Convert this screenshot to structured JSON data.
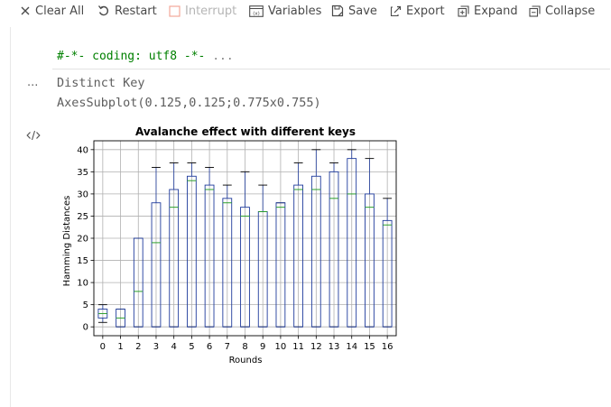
{
  "toolbar": {
    "items": [
      {
        "label": "Clear All",
        "icon": "close-icon"
      },
      {
        "label": "Restart",
        "icon": "restart-icon"
      },
      {
        "label": "Interrupt",
        "icon": "stop-icon",
        "disabled": true
      },
      {
        "label": "Variables",
        "icon": "variables-icon"
      },
      {
        "label": "Save",
        "icon": "save-icon"
      },
      {
        "label": "Export",
        "icon": "export-icon"
      },
      {
        "label": "Expand",
        "icon": "expand-icon"
      },
      {
        "label": "Collapse",
        "icon": "collapse-icon"
      }
    ]
  },
  "cell": {
    "code": "#-*- coding: utf8 -*-",
    "ellipsis": "...",
    "output_marker": "...",
    "output_lines": [
      "Distinct Key",
      "AxesSubplot(0.125,0.125;0.775x0.755)"
    ]
  },
  "colors": {
    "box": "#1f3b9c",
    "median": "#2ca02c",
    "whisker": "#000000",
    "grid": "#b0b0b0",
    "code_green": "#008000"
  },
  "chart_data": {
    "type": "box",
    "title": "Avalanche effect with different keys",
    "xlabel": "Rounds",
    "ylabel": "Hamming Distances",
    "categories": [
      "0",
      "1",
      "2",
      "3",
      "4",
      "5",
      "6",
      "7",
      "8",
      "9",
      "10",
      "11",
      "12",
      "13",
      "14",
      "15",
      "16"
    ],
    "ylim": [
      -2,
      42
    ],
    "yticks": [
      0,
      5,
      10,
      15,
      20,
      25,
      30,
      35,
      40
    ],
    "grid": true,
    "boxes": [
      {
        "whisker_low": 1,
        "q1": 2,
        "median": 3,
        "q3": 4,
        "whisker_high": 5
      },
      {
        "whisker_low": 0,
        "q1": 0,
        "median": 2,
        "q3": 4,
        "whisker_high": 4
      },
      {
        "whisker_low": 0,
        "q1": 0,
        "median": 8,
        "q3": 20,
        "whisker_high": 20
      },
      {
        "whisker_low": 0,
        "q1": 0,
        "median": 19,
        "q3": 28,
        "whisker_high": 36
      },
      {
        "whisker_low": 0,
        "q1": 0,
        "median": 27,
        "q3": 31,
        "whisker_high": 37
      },
      {
        "whisker_low": 0,
        "q1": 0,
        "median": 33,
        "q3": 34,
        "whisker_high": 37
      },
      {
        "whisker_low": 0,
        "q1": 0,
        "median": 31,
        "q3": 32,
        "whisker_high": 36
      },
      {
        "whisker_low": 0,
        "q1": 0,
        "median": 28,
        "q3": 29,
        "whisker_high": 32
      },
      {
        "whisker_low": 0,
        "q1": 0,
        "median": 25,
        "q3": 27,
        "whisker_high": 35
      },
      {
        "whisker_low": 0,
        "q1": 0,
        "median": 26,
        "q3": 26,
        "whisker_high": 32
      },
      {
        "whisker_low": 0,
        "q1": 0,
        "median": 27,
        "q3": 28,
        "whisker_high": 28
      },
      {
        "whisker_low": 0,
        "q1": 0,
        "median": 31,
        "q3": 32,
        "whisker_high": 37
      },
      {
        "whisker_low": 0,
        "q1": 0,
        "median": 31,
        "q3": 34,
        "whisker_high": 40
      },
      {
        "whisker_low": 0,
        "q1": 0,
        "median": 29,
        "q3": 35,
        "whisker_high": 37
      },
      {
        "whisker_low": 0,
        "q1": 0,
        "median": 30,
        "q3": 38,
        "whisker_high": 40
      },
      {
        "whisker_low": 0,
        "q1": 0,
        "median": 27,
        "q3": 30,
        "whisker_high": 38
      },
      {
        "whisker_low": 0,
        "q1": 0,
        "median": 23,
        "q3": 24,
        "whisker_high": 29
      }
    ]
  }
}
